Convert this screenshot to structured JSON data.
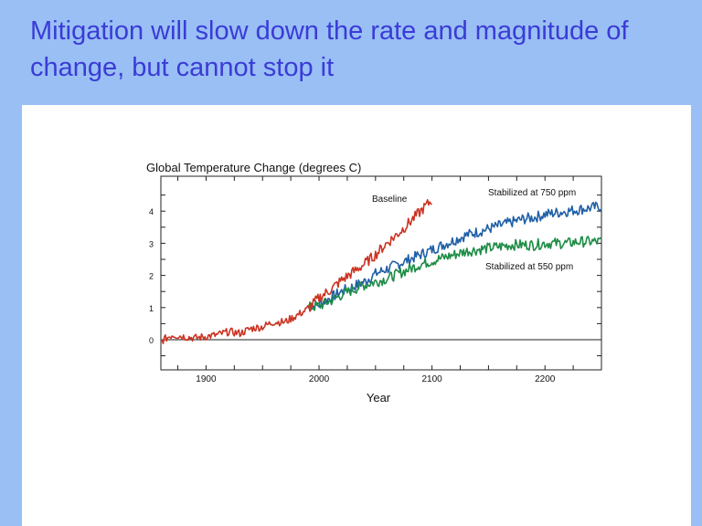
{
  "slide": {
    "title": "Mitigation will slow down the rate and magnitude of change, but cannot stop it"
  },
  "colors": {
    "slide_background": "#99bff5",
    "title_text": "#3b3bd6",
    "panel_background": "#ffffff"
  },
  "chart_data": {
    "type": "line",
    "title": "Global Temperature Change (degrees C)",
    "xlabel": "Year",
    "ylabel": "",
    "xlim": [
      1860,
      2250
    ],
    "ylim": [
      -0.9,
      5
    ],
    "x_ticks": [
      1900,
      2000,
      2100,
      2200
    ],
    "y_ticks": [
      0,
      1,
      2,
      3,
      4
    ],
    "grid": false,
    "zero_line": true,
    "series": [
      {
        "name": "Baseline",
        "color": "#cc3322",
        "x": [
          1860,
          1870,
          1880,
          1890,
          1900,
          1910,
          1920,
          1930,
          1940,
          1950,
          1960,
          1970,
          1980,
          1990,
          2000,
          2010,
          2020,
          2030,
          2040,
          2050,
          2060,
          2070,
          2080,
          2090,
          2100
        ],
        "y": [
          -0.05,
          0.15,
          0.1,
          0.05,
          0.1,
          0.15,
          0.25,
          0.2,
          0.35,
          0.4,
          0.55,
          0.55,
          0.75,
          0.95,
          1.3,
          1.55,
          1.85,
          2.1,
          2.35,
          2.65,
          3.0,
          3.3,
          3.65,
          4.0,
          4.35
        ]
      },
      {
        "name": "Stabilized at 750 ppm",
        "color": "#1f5fa6",
        "x": [
          1990,
          2000,
          2010,
          2020,
          2030,
          2040,
          2050,
          2060,
          2070,
          2080,
          2090,
          2100,
          2110,
          2120,
          2130,
          2140,
          2150,
          2160,
          2170,
          2180,
          2190,
          2200,
          2210,
          2220,
          2230,
          2240,
          2250
        ],
        "y": [
          1.0,
          1.1,
          1.3,
          1.5,
          1.65,
          1.8,
          2.05,
          2.2,
          2.35,
          2.5,
          2.65,
          2.8,
          2.95,
          3.1,
          3.25,
          3.35,
          3.45,
          3.55,
          3.65,
          3.75,
          3.8,
          3.9,
          3.95,
          4.0,
          4.05,
          4.1,
          4.15
        ]
      },
      {
        "name": "Stabilized at 550 ppm",
        "color": "#1e8c46",
        "x": [
          1990,
          2000,
          2010,
          2020,
          2030,
          2040,
          2050,
          2060,
          2070,
          2080,
          2090,
          2100,
          2110,
          2120,
          2130,
          2140,
          2150,
          2160,
          2170,
          2180,
          2190,
          2200,
          2210,
          2220,
          2230,
          2240,
          2250
        ],
        "y": [
          1.0,
          1.05,
          1.2,
          1.4,
          1.55,
          1.7,
          1.8,
          1.9,
          2.05,
          2.2,
          2.35,
          2.45,
          2.55,
          2.65,
          2.75,
          2.8,
          2.85,
          2.9,
          2.95,
          2.95,
          2.95,
          3.0,
          3.0,
          3.0,
          3.05,
          3.05,
          3.05
        ]
      }
    ],
    "annotations": [
      "Baseline",
      "Stabilized at 750 ppm",
      "Stabilized at 550 ppm"
    ]
  }
}
